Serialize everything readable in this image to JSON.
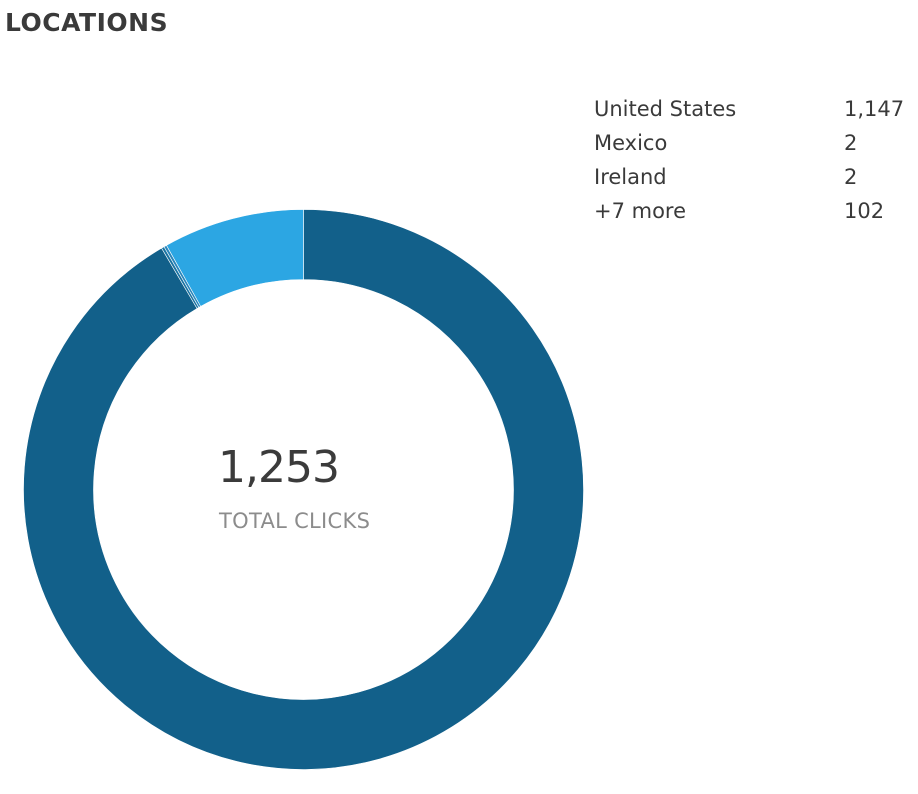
{
  "header": {
    "title": "LOCATIONS"
  },
  "summary": {
    "total": "1,253",
    "total_label": "TOTAL CLICKS"
  },
  "legend": [
    {
      "label": "United States",
      "value": "1,147"
    },
    {
      "label": "Mexico",
      "value": "2"
    },
    {
      "label": "Ireland",
      "value": "2"
    },
    {
      "label": "+7 more",
      "value": "102"
    }
  ],
  "chart_data": {
    "type": "pie",
    "donut": true,
    "categories": [
      "United States",
      "Mexico",
      "Ireland",
      "+7 more"
    ],
    "values": [
      1147,
      2,
      2,
      102
    ],
    "colors": [
      "#12608a",
      "#1a74a3",
      "#2a86bb",
      "#2ca6e3"
    ],
    "start": "top",
    "direction": "clockwise"
  }
}
